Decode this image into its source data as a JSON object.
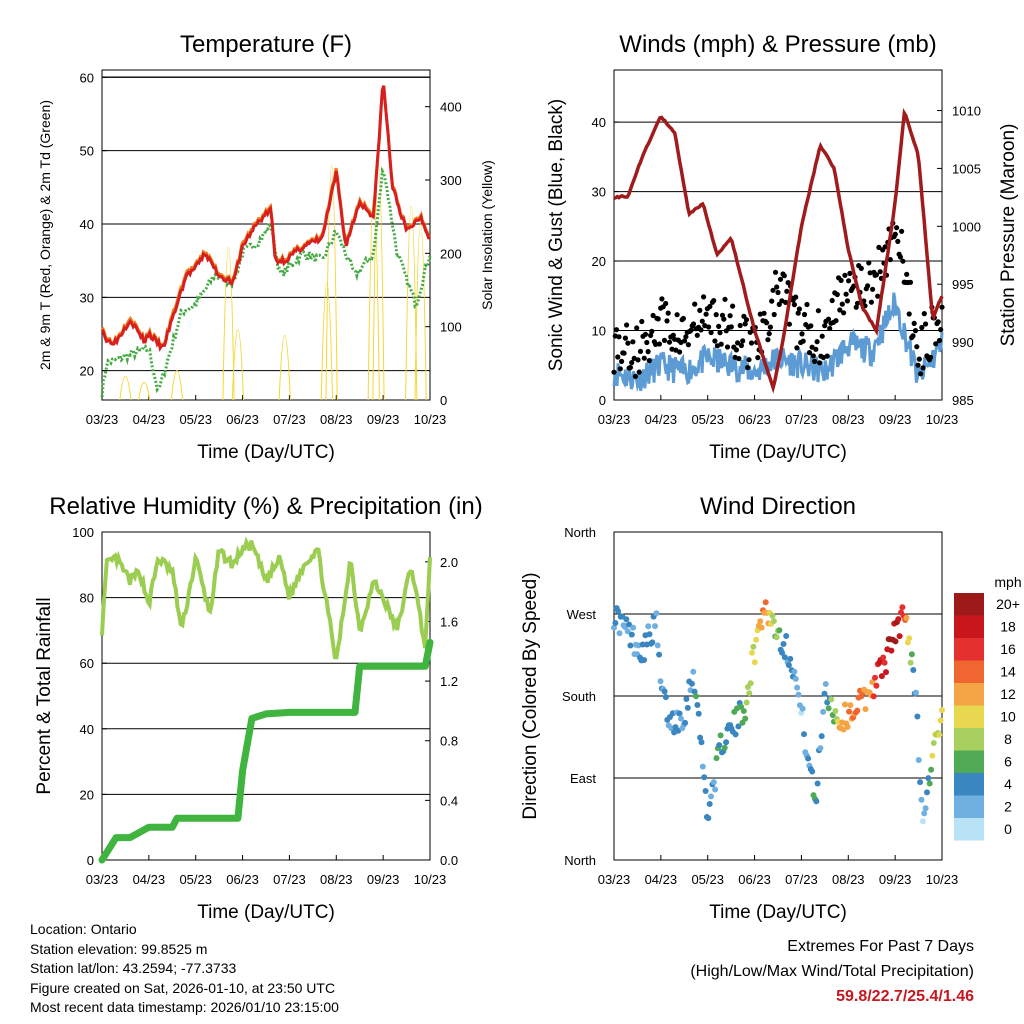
{
  "footer": {
    "location": "Location: Ontario",
    "elevation": "Station elevation: 99.8525 m",
    "latlon": "Station lat/lon: 43.2594; -77.3733",
    "created": "Figure created on Sat, 2026-01-10, at 23:50 UTC",
    "recent": "Most recent data timestamp: 2026/01/10 23:15:00"
  },
  "extremes": {
    "title": "Extremes For Past 7 Days",
    "subtitle": "(High/Low/Max Wind/Total Precipitation)",
    "values": "59.8/22.7/25.4/1.46",
    "color": "#c8161d"
  },
  "chart_data": [
    {
      "type": "line",
      "title": "Temperature (F)",
      "xlabel": "Time (Day/UTC)",
      "ylabel": "2m & 9m T (Red, Orange) & 2m Td (Green)",
      "y2label": "Solar Insolation (Yellow)",
      "xticks": [
        "03/23",
        "04/23",
        "05/23",
        "06/23",
        "07/23",
        "08/23",
        "09/23",
        "10/23"
      ],
      "ylim": [
        16,
        61
      ],
      "yticks": [
        20,
        30,
        40,
        50,
        60
      ],
      "y2lim": [
        0,
        450
      ],
      "y2ticks": [
        0,
        100,
        200,
        300,
        400
      ],
      "series": [
        {
          "name": "2m T",
          "color": "#d62020",
          "x": [
            0,
            0.1,
            0.3,
            0.6,
            0.9,
            1.0,
            1.3,
            1.5,
            1.8,
            2.0,
            2.2,
            2.5,
            2.8,
            3.0,
            3.3,
            3.6,
            3.7,
            3.9,
            4.3,
            4.7,
            5.0,
            5.2,
            5.5,
            5.8,
            6.0,
            6.2,
            6.5,
            6.8,
            7.0
          ],
          "values": [
            26,
            24,
            24,
            27,
            24,
            25,
            23,
            27,
            33,
            34,
            36,
            33,
            32,
            37,
            40,
            42,
            35,
            35,
            37,
            38,
            47,
            37,
            43,
            41,
            59.8,
            45,
            39,
            41,
            38
          ]
        },
        {
          "name": "9m T",
          "color": "#f08020",
          "x": [
            0,
            0.1,
            0.3,
            0.6,
            0.9,
            1.0,
            1.3,
            1.5,
            1.8,
            2.0,
            2.2,
            2.5,
            2.8,
            3.0,
            3.3,
            3.6,
            3.7,
            3.9,
            4.3,
            4.7,
            5.0,
            5.2,
            5.5,
            5.8,
            6.0,
            6.2,
            6.5,
            6.8,
            7.0
          ],
          "values": [
            26.3,
            24.3,
            24.2,
            27.4,
            24.2,
            25.3,
            23.2,
            27.5,
            33.4,
            34.3,
            36.3,
            33.3,
            32.2,
            37.4,
            40.3,
            42.3,
            35.2,
            35.3,
            37.2,
            38.3,
            47.4,
            37.3,
            43.3,
            41.3,
            59.6,
            45.3,
            39.2,
            41.3,
            38.2
          ]
        },
        {
          "name": "2m Td",
          "color": "#44aa44",
          "x": [
            0,
            0.1,
            0.5,
            1.0,
            1.2,
            1.7,
            2.0,
            2.4,
            2.8,
            3.0,
            3.4,
            3.6,
            3.8,
            4.3,
            4.7,
            5.0,
            5.4,
            5.8,
            6.0,
            6.3,
            6.7,
            7.0
          ],
          "values": [
            17,
            21,
            22,
            23,
            17,
            28,
            29,
            33,
            32,
            36,
            38,
            40,
            33,
            36,
            35,
            39,
            33,
            36,
            48,
            36,
            29,
            36
          ]
        },
        {
          "name": "Solar Insolation",
          "axis": "y2",
          "color": "#f5d633",
          "peaks_x": [
            0.5,
            0.9,
            1.6,
            2.7,
            2.9,
            3.9,
            4.8,
            4.9,
            5.8,
            5.9,
            6.6,
            6.8
          ],
          "peaks": [
            40,
            30,
            50,
            260,
            120,
            110,
            200,
            400,
            350,
            400,
            330,
            300
          ]
        }
      ]
    },
    {
      "type": "line",
      "title": "Winds (mph) & Pressure (mb)",
      "xlabel": "Time (Day/UTC)",
      "ylabel": "Sonic Wind & Gust (Blue, Black)",
      "y2label": "Station Pressure (Maroon)",
      "xticks": [
        "03/23",
        "04/23",
        "05/23",
        "06/23",
        "07/23",
        "08/23",
        "09/23",
        "10/23"
      ],
      "ylim": [
        0,
        47.5
      ],
      "yticks": [
        0,
        10,
        20,
        30,
        40
      ],
      "y2lim": [
        985,
        1013.5
      ],
      "y2ticks": [
        985,
        990,
        995,
        1000,
        1005,
        1010
      ],
      "series": [
        {
          "name": "Sonic Wind",
          "color": "#5c9bd3",
          "x": [
            0,
            0.5,
            1.0,
            1.5,
            2.0,
            2.5,
            3.0,
            3.5,
            4.0,
            4.5,
            5.0,
            5.5,
            6.0,
            6.5,
            7.0
          ],
          "values": [
            4,
            3,
            5,
            4,
            6,
            5,
            4,
            6,
            5,
            4,
            8,
            7,
            14,
            3,
            8
          ]
        },
        {
          "name": "Gust",
          "color": "#000000",
          "x": [
            0,
            0.5,
            1.0,
            1.5,
            2.0,
            2.5,
            3.0,
            3.5,
            4.0,
            4.5,
            5.0,
            5.5,
            6.0,
            6.5,
            7.0
          ],
          "values": [
            8,
            7,
            11,
            9,
            12,
            10,
            8,
            16,
            10,
            9,
            18,
            16,
            25.4,
            7,
            13
          ]
        },
        {
          "name": "Station Pressure",
          "axis": "y2",
          "color": "#a01c1c",
          "x": [
            0,
            0.3,
            0.6,
            1.0,
            1.3,
            1.6,
            1.9,
            2.2,
            2.5,
            3.0,
            3.4,
            3.6,
            4.0,
            4.4,
            4.7,
            5.0,
            5.3,
            5.6,
            6.0,
            6.2,
            6.5,
            6.8,
            7.0
          ],
          "values": [
            1002.5,
            1002.6,
            1006,
            1009.5,
            1008,
            1001,
            1002,
            997.5,
            999,
            991,
            986,
            990,
            1000,
            1007,
            1005,
            998,
            993,
            991,
            1002,
            1010,
            1006,
            992,
            994
          ]
        }
      ]
    },
    {
      "type": "line",
      "title": "Relative Humidity (%) & Precipitation (in)",
      "xlabel": "Time (Day/UTC)",
      "ylabel": "Percent & Total Rainfall",
      "xticks": [
        "03/23",
        "04/23",
        "05/23",
        "06/23",
        "07/23",
        "08/23",
        "09/23",
        "10/23"
      ],
      "ylim": [
        0,
        100
      ],
      "yticks": [
        0,
        20,
        40,
        60,
        80,
        100
      ],
      "y2lim": [
        0,
        2.2
      ],
      "y2ticks": [
        0.0,
        0.4,
        0.8,
        1.2,
        1.6,
        2.0
      ],
      "series": [
        {
          "name": "Relative Humidity",
          "color": "#9acd50",
          "x": [
            0,
            0.1,
            0.3,
            0.6,
            0.8,
            1.0,
            1.2,
            1.5,
            1.7,
            2.0,
            2.3,
            2.5,
            2.8,
            3.0,
            3.2,
            3.5,
            3.8,
            4.0,
            4.3,
            4.6,
            5.0,
            5.3,
            5.5,
            5.8,
            6.0,
            6.3,
            6.6,
            6.9,
            7.0
          ],
          "values": [
            70,
            90,
            92,
            85,
            88,
            78,
            92,
            88,
            70,
            92,
            75,
            94,
            90,
            95,
            96,
            85,
            92,
            80,
            90,
            95,
            60,
            92,
            70,
            85,
            80,
            70,
            90,
            65,
            91
          ]
        },
        {
          "name": "Total Precipitation",
          "axis": "y2",
          "color": "#3fb43f",
          "x": [
            0,
            0.3,
            0.6,
            1.0,
            1.5,
            1.6,
            2.0,
            2.9,
            3.0,
            3.2,
            3.5,
            4.0,
            4.5,
            5.0,
            5.4,
            5.5,
            6.0,
            6.5,
            6.9,
            7.0
          ],
          "values": [
            0,
            0.15,
            0.15,
            0.22,
            0.22,
            0.28,
            0.28,
            0.28,
            0.6,
            0.95,
            0.98,
            0.99,
            0.99,
            0.99,
            0.99,
            1.3,
            1.3,
            1.3,
            1.3,
            1.46
          ]
        }
      ]
    },
    {
      "type": "scatter",
      "title": "Wind Direction",
      "xlabel": "Time (Day/UTC)",
      "ylabel": "Direction (Colored By Speed)",
      "xticks": [
        "03/23",
        "04/23",
        "05/23",
        "06/23",
        "07/23",
        "08/23",
        "09/23",
        "10/23"
      ],
      "yticks": [
        "North",
        "East",
        "South",
        "West",
        "North"
      ],
      "ylim": [
        0,
        360
      ],
      "colorbar_title": "mph",
      "colorbar_labels": [
        "20+",
        "18",
        "16",
        "14",
        "12",
        "10",
        "8",
        "6",
        "4",
        "2",
        "0"
      ],
      "colorbar_colors": [
        "#9e1a1a",
        "#c8161d",
        "#e53030",
        "#f06630",
        "#f4a444",
        "#e8d850",
        "#a8d060",
        "#50aa55",
        "#3a86c0",
        "#70b0e0",
        "#b8e2f6"
      ],
      "x": [
        0,
        0.3,
        0.6,
        0.9,
        1.0,
        1.2,
        1.5,
        1.7,
        2.0,
        2.3,
        2.6,
        2.8,
        3.0,
        3.2,
        3.4,
        3.6,
        3.8,
        4.0,
        4.3,
        4.5,
        4.8,
        5.0,
        5.2,
        5.4,
        5.6,
        5.8,
        6.0,
        6.2,
        6.4,
        6.6,
        6.8,
        7.0
      ],
      "direction": [
        270,
        250,
        230,
        260,
        190,
        150,
        160,
        210,
        50,
        130,
        150,
        170,
        230,
        280,
        260,
        240,
        220,
        160,
        60,
        190,
        150,
        160,
        170,
        180,
        200,
        220,
        250,
        270,
        210,
        40,
        120,
        150
      ],
      "speed": [
        4,
        3,
        4,
        3,
        2,
        4,
        3,
        4,
        3,
        5,
        4,
        6,
        10,
        14,
        8,
        4,
        3,
        2,
        4,
        3,
        10,
        12,
        14,
        12,
        16,
        18,
        20,
        16,
        3,
        2,
        8,
        9
      ]
    }
  ]
}
